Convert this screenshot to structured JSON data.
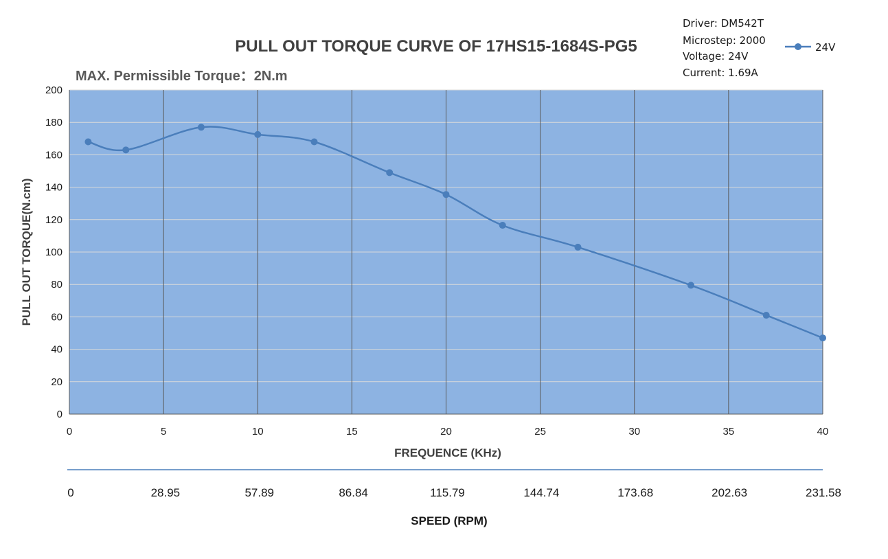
{
  "chart_data": {
    "type": "line",
    "title": "PULL OUT TORQUE CURVE OF 17HS15-1684S-PG5",
    "subtitle": "MAX. Permissible Torque：2N.m",
    "info_lines": [
      "Driver: DM542T",
      "Microstep: 2000",
      "Voltage: 24V",
      "Current: 1.69A"
    ],
    "xlabel": "FREQUENCE (KHz)",
    "ylabel": "PULL OUT TORQUE(N.cm)",
    "xlim": [
      0,
      40
    ],
    "ylim": [
      0,
      200
    ],
    "x_ticks": [
      "0",
      "5",
      "10",
      "15",
      "20",
      "25",
      "30",
      "35",
      "40"
    ],
    "y_ticks": [
      "0",
      "20",
      "40",
      "60",
      "80",
      "100",
      "120",
      "140",
      "160",
      "180",
      "200"
    ],
    "grid": "on",
    "legend": "top-right",
    "series": [
      {
        "name": "24V",
        "color": "#4a7ebb",
        "x": [
          1,
          3,
          7,
          10,
          13,
          17,
          20,
          23,
          27,
          33,
          37,
          40
        ],
        "y": [
          168,
          163,
          177,
          172.5,
          168,
          149,
          135.5,
          116.5,
          103,
          79.5,
          61,
          47
        ]
      }
    ],
    "secondary_axis": {
      "label": "SPEED (RPM)",
      "ticks": [
        "0",
        "28.95",
        "57.89",
        "86.84",
        "115.79",
        "144.74",
        "173.68",
        "202.63",
        "231.58"
      ]
    },
    "plot_background": "#8db3e2",
    "gridline_color_x": "#595959",
    "gridline_color_y": "#d9d9d9"
  }
}
